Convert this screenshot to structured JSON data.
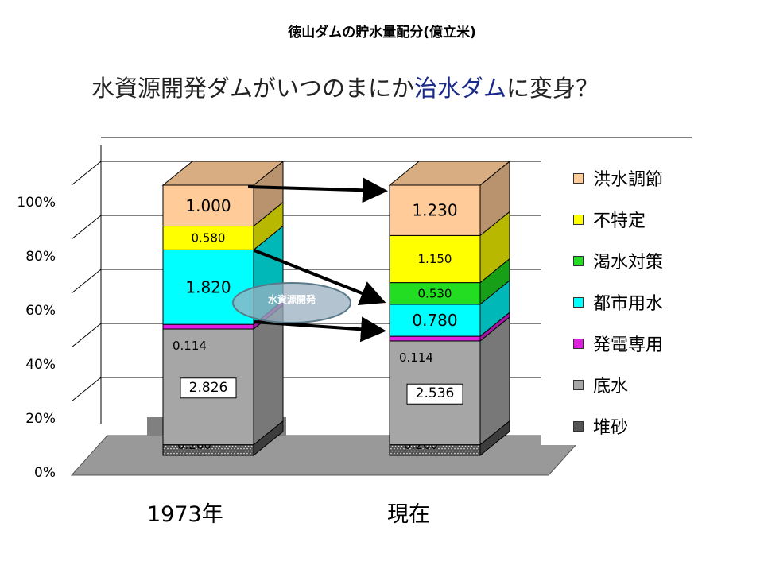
{
  "title": "徳山ダムの貯水量配分(億立米)",
  "subtitle": {
    "part1": "水資源開発ダム",
    "part2": "がいつのまにか",
    "part3": "治水ダム",
    "part4": "に変身？"
  },
  "chart_data": {
    "type": "bar",
    "stacked": true,
    "percent": true,
    "categories": [
      "1973年",
      "現在"
    ],
    "series": [
      {
        "name": "堆砂",
        "values": [
          0.26,
          0.26
        ],
        "color": "#555555",
        "labels": [
          "0.260",
          "0.260"
        ]
      },
      {
        "name": "底水",
        "values": [
          2.826,
          2.536
        ],
        "color": "#a6a6a6",
        "labels": [
          "2.826",
          "2.536"
        ]
      },
      {
        "name": "発電専用",
        "values": [
          0.114,
          0.114
        ],
        "color": "#e020e0",
        "labels": [
          "0.114",
          "0.114"
        ]
      },
      {
        "name": "都市用水",
        "values": [
          1.82,
          0.78
        ],
        "color": "#00ffff",
        "labels": [
          "1.820",
          "0.780"
        ]
      },
      {
        "name": "渇水対策",
        "values": [
          0,
          0.53
        ],
        "color": "#22dd22",
        "labels": [
          "",
          "0.530"
        ]
      },
      {
        "name": "不特定",
        "values": [
          0.58,
          1.15
        ],
        "color": "#ffff00",
        "labels": [
          "0.580",
          "1.150"
        ]
      },
      {
        "name": "洪水調節",
        "values": [
          1.0,
          1.23
        ],
        "color": "#ffcc99",
        "labels": [
          "1.000",
          "1.230"
        ]
      }
    ],
    "yticks": [
      "0%",
      "20%",
      "40%",
      "60%",
      "80%",
      "100%"
    ],
    "ylim": [
      0,
      100
    ],
    "annotation": "水資源開発",
    "legend_position": "right"
  }
}
